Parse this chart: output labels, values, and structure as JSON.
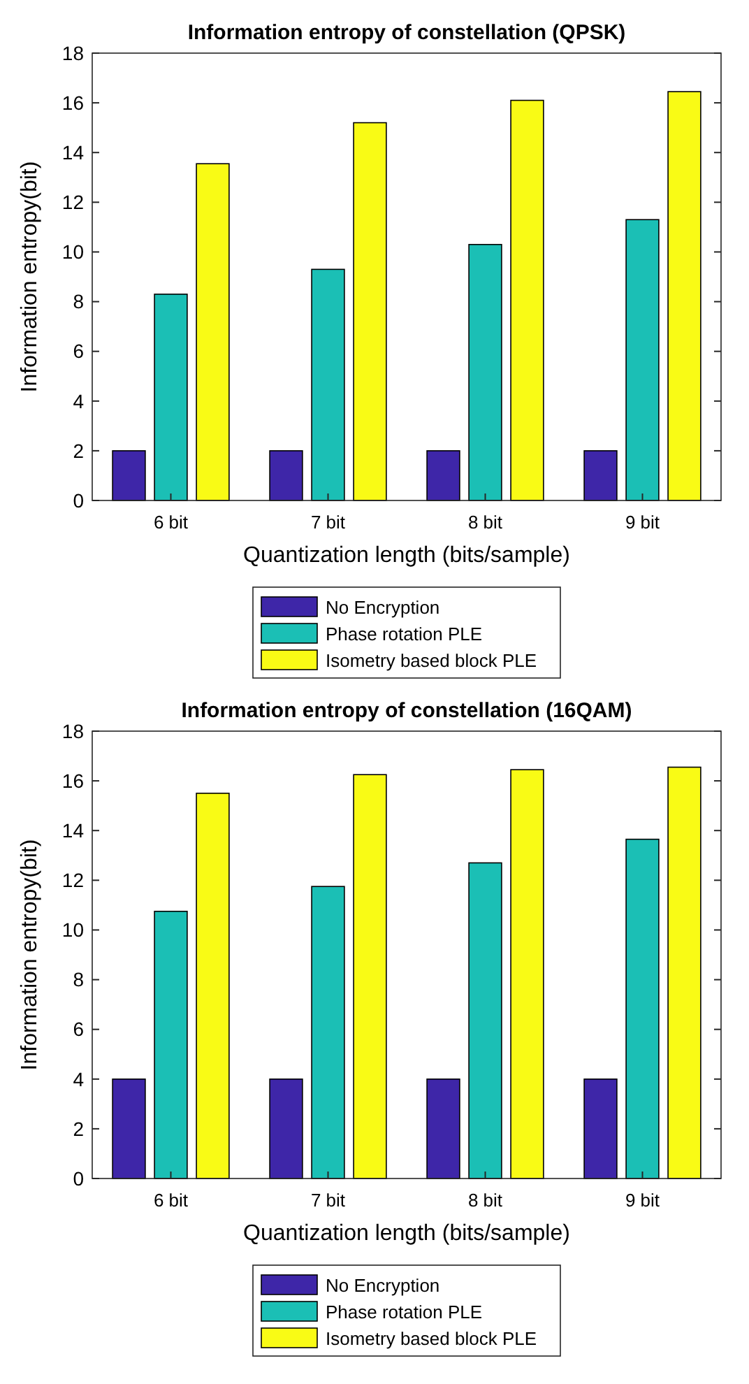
{
  "chart_data": [
    {
      "type": "bar",
      "title": "Information entropy of constellation (QPSK)",
      "xlabel": "Quantization length (bits/sample)",
      "ylabel": "Information entropy(bit)",
      "categories": [
        "6 bit",
        "7 bit",
        "8 bit",
        "9 bit"
      ],
      "ylim": [
        0,
        18
      ],
      "yticks": [
        0,
        2,
        4,
        6,
        8,
        10,
        12,
        14,
        16,
        18
      ],
      "legend": "bottom",
      "series": [
        {
          "name": "No Encryption",
          "color": "#3e26a8",
          "values": [
            2,
            2,
            2,
            2
          ]
        },
        {
          "name": "Phase rotation PLE",
          "color": "#1bbfb5",
          "values": [
            8.3,
            9.3,
            10.3,
            11.3
          ]
        },
        {
          "name": "Isometry based block PLE",
          "color": "#f9fb15",
          "values": [
            13.55,
            15.2,
            16.1,
            16.45
          ]
        }
      ]
    },
    {
      "type": "bar",
      "title": "Information entropy of constellation (16QAM)",
      "xlabel": "Quantization length (bits/sample)",
      "ylabel": "Information entropy(bit)",
      "categories": [
        "6 bit",
        "7 bit",
        "8 bit",
        "9 bit"
      ],
      "ylim": [
        0,
        18
      ],
      "yticks": [
        0,
        2,
        4,
        6,
        8,
        10,
        12,
        14,
        16,
        18
      ],
      "legend": "bottom",
      "series": [
        {
          "name": "No Encryption",
          "color": "#3e26a8",
          "values": [
            4,
            4,
            4,
            4
          ]
        },
        {
          "name": "Phase rotation PLE",
          "color": "#1bbfb5",
          "values": [
            10.75,
            11.75,
            12.7,
            13.65
          ]
        },
        {
          "name": "Isometry based block PLE",
          "color": "#f9fb15",
          "values": [
            15.5,
            16.25,
            16.45,
            16.55
          ]
        }
      ]
    }
  ]
}
